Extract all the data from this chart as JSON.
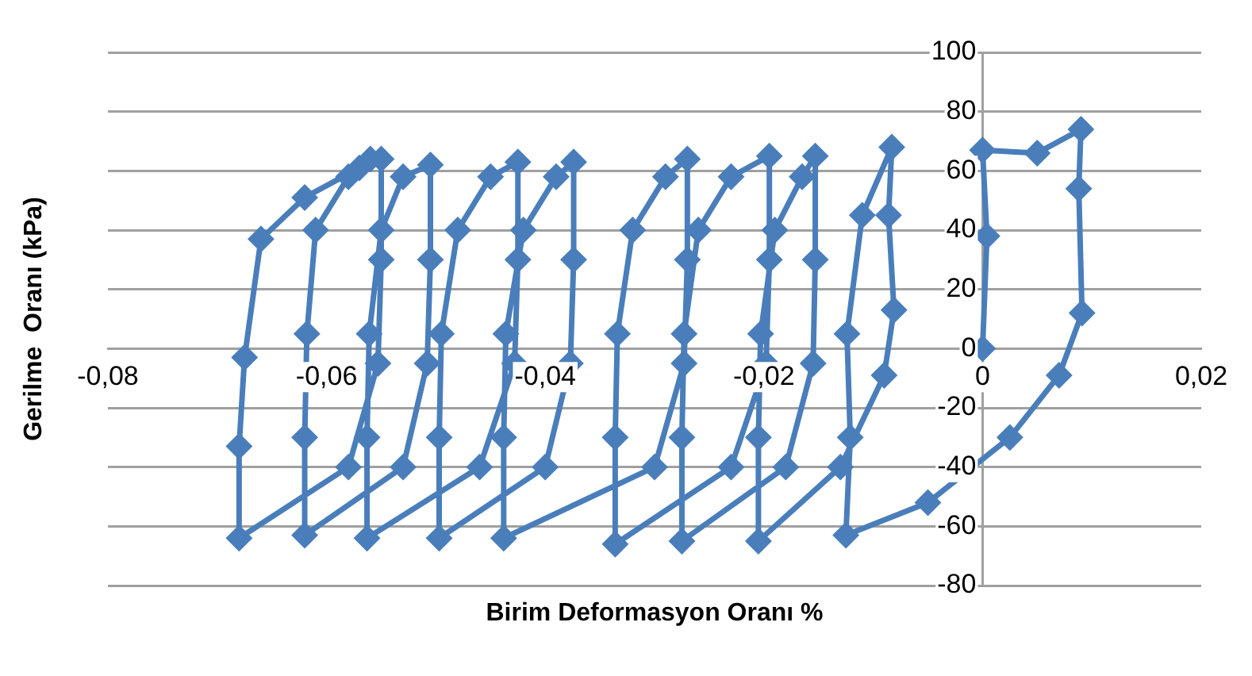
{
  "chart_data": {
    "type": "line",
    "xlabel": "Birim Deformasyon Oranı %",
    "ylabel": "Gerilme  Oranı (kPa)",
    "xlim": [
      -0.08,
      0.02
    ],
    "xticks": [
      {
        "value": -0.08,
        "label": "-0,08"
      },
      {
        "value": -0.06,
        "label": "-0,06"
      },
      {
        "value": -0.04,
        "label": "-0,04"
      },
      {
        "value": -0.02,
        "label": "-0,02"
      },
      {
        "value": 0,
        "label": "0"
      },
      {
        "value": 0.02,
        "label": "0,02"
      }
    ],
    "ylim": [
      -80,
      100
    ],
    "yticks": [
      -80,
      -60,
      -40,
      -20,
      0,
      20,
      40,
      60,
      80,
      100
    ],
    "grid": "y",
    "legend": false,
    "marker": "diamond",
    "line_style": "solid",
    "series": [
      {
        "color": "#4a7ebb",
        "x": [
          0,
          0.0004,
          0,
          0.005,
          0.009,
          0.0088,
          0.0091,
          0.007,
          0.0025,
          -0.005,
          -0.0125,
          -0.0121,
          -0.0124,
          -0.011,
          -0.0083,
          -0.0086,
          -0.0081,
          -0.009,
          -0.013,
          -0.0205,
          -0.0205,
          -0.0203,
          -0.019,
          -0.0165,
          -0.0153,
          -0.0153,
          -0.0155,
          -0.018,
          -0.0275,
          -0.0275,
          -0.0273,
          -0.026,
          -0.023,
          -0.0195,
          -0.0195,
          -0.0198,
          -0.023,
          -0.0336,
          -0.0336,
          -0.0334,
          -0.032,
          -0.029,
          -0.027,
          -0.027,
          -0.0273,
          -0.03,
          -0.0438,
          -0.0438,
          -0.0436,
          -0.042,
          -0.039,
          -0.0374,
          -0.0374,
          -0.0377,
          -0.04,
          -0.0497,
          -0.0497,
          -0.0495,
          -0.048,
          -0.045,
          -0.0425,
          -0.0425,
          -0.0428,
          -0.046,
          -0.0563,
          -0.0563,
          -0.0561,
          -0.055,
          -0.053,
          -0.0505,
          -0.0505,
          -0.0508,
          -0.053,
          -0.062,
          -0.062,
          -0.0618,
          -0.061,
          -0.058,
          -0.055,
          -0.055,
          -0.0553,
          -0.058,
          -0.068,
          -0.068,
          -0.0675,
          -0.066,
          -0.062,
          -0.057,
          -0.056
        ],
        "values": [
          0,
          38,
          67,
          66,
          74,
          54,
          12,
          -9,
          -30,
          -52,
          -63,
          -30,
          5,
          45,
          68,
          45,
          13,
          -9,
          -40,
          -65,
          -30,
          5,
          40,
          58,
          65,
          30,
          -5,
          -40,
          -65,
          -30,
          5,
          40,
          58,
          65,
          30,
          -5,
          -40,
          -66,
          -30,
          5,
          40,
          58,
          64,
          30,
          -5,
          -40,
          -64,
          -30,
          5,
          40,
          58,
          63,
          30,
          -5,
          -40,
          -64,
          -30,
          5,
          40,
          58,
          63,
          30,
          -5,
          -40,
          -64,
          -30,
          5,
          40,
          58,
          62,
          30,
          -5,
          -40,
          -63,
          -30,
          5,
          40,
          58,
          64,
          30,
          -5,
          -40,
          -64,
          -33,
          -3,
          37,
          51,
          61,
          64
        ]
      }
    ]
  }
}
